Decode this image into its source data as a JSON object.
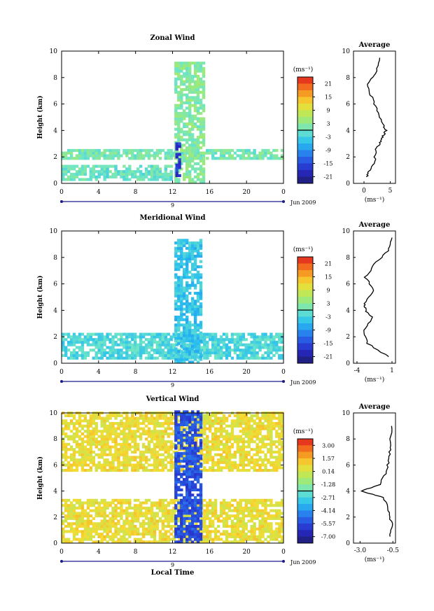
{
  "panels": [
    {
      "title": "Zonal Wind",
      "ylabel": "Height (km)",
      "xticks": [
        "0",
        "4",
        "8",
        "12",
        "16",
        "20",
        "0"
      ],
      "yticks": [
        "0",
        "2",
        "4",
        "6",
        "8",
        "10"
      ],
      "day_label": "9",
      "date_label": "Jun 2009",
      "units": "(ms⁻¹)",
      "colorbar_ticks": [
        "21",
        "15",
        "9",
        "3",
        "-3",
        "-9",
        "-15",
        "-21"
      ],
      "avg_title": "Average",
      "avg_xticks": [
        "0",
        "5"
      ],
      "avg_xlabel": "(ms⁻¹)",
      "avg_yticks": [
        "0",
        "2",
        "4",
        "6",
        "8",
        "10"
      ]
    },
    {
      "title": "Meridional Wind",
      "ylabel": "Height (km)",
      "xticks": [
        "0",
        "4",
        "8",
        "12",
        "16",
        "20",
        "0"
      ],
      "yticks": [
        "0",
        "2",
        "4",
        "6",
        "8",
        "10"
      ],
      "day_label": "9",
      "date_label": "Jun 2009",
      "units": "(ms⁻¹)",
      "colorbar_ticks": [
        "21",
        "15",
        "9",
        "3",
        "-3",
        "-9",
        "-15",
        "-21"
      ],
      "avg_title": "Average",
      "avg_xticks": [
        "-4",
        "1"
      ],
      "avg_xlabel": "(ms⁻¹)",
      "avg_yticks": [
        "0",
        "2",
        "4",
        "6",
        "8",
        "10"
      ]
    },
    {
      "title": "Vertical Wind",
      "ylabel": "Height (km)",
      "xticks": [
        "0",
        "4",
        "8",
        "12",
        "16",
        "20",
        "0"
      ],
      "yticks": [
        "0",
        "2",
        "4",
        "6",
        "8",
        "10"
      ],
      "day_label": "9",
      "date_label": "Jun 2009",
      "units": "(ms⁻¹)",
      "colorbar_ticks": [
        "3.00",
        "1.57",
        "0.14",
        "-1.28",
        "-2.71",
        "-4.14",
        "-5.57",
        "-7.00"
      ],
      "avg_title": "Average",
      "avg_xticks": [
        "-3.0",
        "-0.5"
      ],
      "avg_xlabel": "(ms⁻¹)",
      "avg_yticks": [
        "0",
        "2",
        "4",
        "6",
        "8",
        "10"
      ],
      "xlabel": "Local Time"
    }
  ],
  "chart_data": [
    {
      "type": "heatmap",
      "title": "Zonal Wind",
      "xlabel": "",
      "ylabel": "Height (km)",
      "xlim": [
        0,
        24
      ],
      "ylim": [
        0,
        10
      ],
      "colorbar": {
        "label": "(ms⁻¹)",
        "range": [
          -21,
          21
        ]
      },
      "bands": [
        {
          "x": [
            0,
            24
          ],
          "y": [
            1.8,
            2.6
          ],
          "value": 1
        },
        {
          "x": [
            0,
            12
          ],
          "y": [
            0.2,
            1.3
          ],
          "value": 0
        },
        {
          "x": [
            12.2,
            15.5
          ],
          "y": [
            0,
            9.2
          ],
          "value": 2
        },
        {
          "x": [
            12.3,
            12.9
          ],
          "y": [
            0.5,
            3.0
          ],
          "value": -15
        }
      ],
      "average_profile": {
        "title": "Average",
        "xlim": [
          -2,
          6
        ],
        "xlabel": "(ms⁻¹)",
        "x": [
          0.5,
          1.0,
          2.0,
          2.2,
          3.0,
          3.5,
          4.2,
          3.6,
          2.5,
          1.5,
          0.5,
          2.2,
          3.0
        ],
        "y": [
          0.5,
          1.0,
          1.5,
          2.5,
          3.0,
          3.5,
          4.0,
          4.5,
          5.5,
          6.5,
          7.5,
          8.3,
          9.5
        ]
      }
    },
    {
      "type": "heatmap",
      "title": "Meridional Wind",
      "xlabel": "",
      "ylabel": "Height (km)",
      "xlim": [
        0,
        24
      ],
      "ylim": [
        0,
        10
      ],
      "colorbar": {
        "label": "(ms⁻¹)",
        "range": [
          -21,
          21
        ]
      },
      "bands": [
        {
          "x": [
            0,
            24
          ],
          "y": [
            0.3,
            2.2
          ],
          "value": -2
        },
        {
          "x": [
            12.2,
            15.2
          ],
          "y": [
            0,
            9.3
          ],
          "value": -4
        }
      ],
      "average_profile": {
        "title": "Average",
        "xlim": [
          -4.5,
          1.5
        ],
        "xlabel": "(ms⁻¹)",
        "x": [
          0.5,
          -2.5,
          -3.0,
          -1.8,
          -2.8,
          -3.0,
          -1.5,
          -2.8,
          -1.5,
          0.5,
          1.0
        ],
        "y": [
          0.5,
          1.5,
          2.5,
          3.5,
          4.0,
          4.5,
          5.5,
          6.5,
          7.5,
          8.5,
          9.5
        ]
      }
    },
    {
      "type": "heatmap",
      "title": "Vertical Wind",
      "xlabel": "Local Time",
      "ylabel": "Height (km)",
      "xlim": [
        0,
        24
      ],
      "ylim": [
        0,
        10
      ],
      "colorbar": {
        "label": "(ms⁻¹)",
        "range": [
          -7.0,
          3.0
        ]
      },
      "bands": [
        {
          "x": [
            0,
            24
          ],
          "y": [
            0,
            3.3
          ],
          "value": 0.3
        },
        {
          "x": [
            0,
            24
          ],
          "y": [
            5.5,
            10
          ],
          "value": 0.3
        },
        {
          "x": [
            12.2,
            15.0
          ],
          "y": [
            0,
            10
          ],
          "value": -5
        }
      ],
      "average_profile": {
        "title": "Average",
        "xlim": [
          -3.5,
          -0.3
        ],
        "xlabel": "(ms⁻¹)",
        "x": [
          -0.7,
          -0.6,
          -0.8,
          -1.2,
          -2.9,
          -1.5,
          -1.0,
          -0.8,
          -0.7,
          -0.6
        ],
        "y": [
          0.5,
          1.5,
          2.5,
          3.5,
          4.0,
          4.5,
          5.5,
          6.5,
          7.5,
          9.0
        ]
      }
    }
  ]
}
